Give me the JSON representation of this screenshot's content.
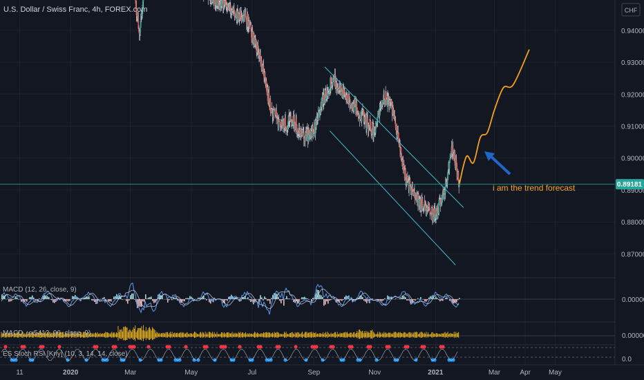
{
  "title": "U.S. Dollar / Swiss Franc, 4h, FOREX.com",
  "currency_badge": "CHF",
  "annotation": "i am the trend forecast",
  "colors": {
    "background": "#131722",
    "grid": "#1e222d",
    "axis_text": "#b2b5be",
    "bull": "#26a69a",
    "bear": "#ef5350",
    "candle_line": "#c8cad0",
    "channel": "#3fc1d0",
    "forecast": "#f7a21b",
    "arrow": "#1e66c8",
    "price_badge": "#26a69a",
    "macd_line": "#5f9be9",
    "signal_line": "#e0e3eb",
    "hist_pos": "#b2ebf2",
    "hist_neg": "#ffcdd2",
    "macd_vx": "#f0b81f",
    "stoch_k": "#2196f3",
    "stoch_d": "#f23645"
  },
  "indicator_labels": {
    "macd": "MACD (12, 26, close, 9)",
    "macd_vx": "MACD_vx5412_96_close_9)",
    "stoch": "ES Stoch RSI [Kriy] (10, 3, 14, 14, close)"
  },
  "indicator_values": {
    "macd": "0.00000",
    "macd_vx": "0.00000",
    "stoch": "0.0"
  },
  "chart_data": {
    "type": "line",
    "title": "U.S. Dollar / Swiss Franc, 4h, FOREX.com",
    "y_ticks": [
      "0.94000",
      "0.93000",
      "0.92000",
      "0.91000",
      "0.90000",
      "0.89000",
      "0.88000",
      "0.87000"
    ],
    "ylim": [
      0.8625,
      0.9495
    ],
    "x_ticks": [
      "11",
      "2020",
      "Mar",
      "May",
      "Jul",
      "Sep",
      "Nov",
      "2021",
      "Mar",
      "Apr",
      "May"
    ],
    "last_price": 0.89181,
    "last_price_label": "0.89181",
    "series": [
      {
        "type": "candles",
        "x": [
          "2019-12-15",
          "2020-01-01",
          "2020-01-15",
          "2020-02-01",
          "2020-02-15",
          "2020-03-01",
          "2020-03-10",
          "2020-03-20",
          "2020-06-10",
          "2020-06-25",
          "2020-07-10",
          "2020-07-20",
          "2020-08-01",
          "2020-08-10",
          "2020-08-20",
          "2020-09-01",
          "2020-09-10",
          "2020-09-20",
          "2020-10-01",
          "2020-10-15",
          "2020-11-01",
          "2020-11-10",
          "2020-11-20",
          "2020-12-01",
          "2020-12-10",
          "2020-12-20",
          "2021-01-01",
          "2021-01-10",
          "2021-01-18",
          "2021-01-25"
        ],
        "close": [
          0.96,
          0.975,
          0.97,
          0.98,
          0.975,
          0.96,
          0.94,
          0.965,
          0.946,
          0.944,
          0.93,
          0.915,
          0.91,
          0.912,
          0.907,
          0.908,
          0.918,
          0.925,
          0.92,
          0.915,
          0.908,
          0.92,
          0.915,
          0.895,
          0.888,
          0.885,
          0.882,
          0.89,
          0.903,
          0.892
        ]
      },
      {
        "type": "line",
        "name": "forecast",
        "x": [
          "2021-01-25",
          "2021-02-01",
          "2021-02-08",
          "2021-02-15",
          "2021-02-22",
          "2021-03-01",
          "2021-03-10",
          "2021-03-20",
          "2021-04-05"
        ],
        "y": [
          0.892,
          0.9005,
          0.8985,
          0.9065,
          0.908,
          0.915,
          0.922,
          0.923,
          0.934
        ]
      }
    ],
    "channel": {
      "upper": [
        [
          "2020-09-12",
          0.9285
        ],
        [
          "2021-01-29",
          0.8845
        ]
      ],
      "lower": [
        [
          "2020-09-17",
          0.9085
        ],
        [
          "2021-01-21",
          0.8665
        ]
      ]
    }
  }
}
